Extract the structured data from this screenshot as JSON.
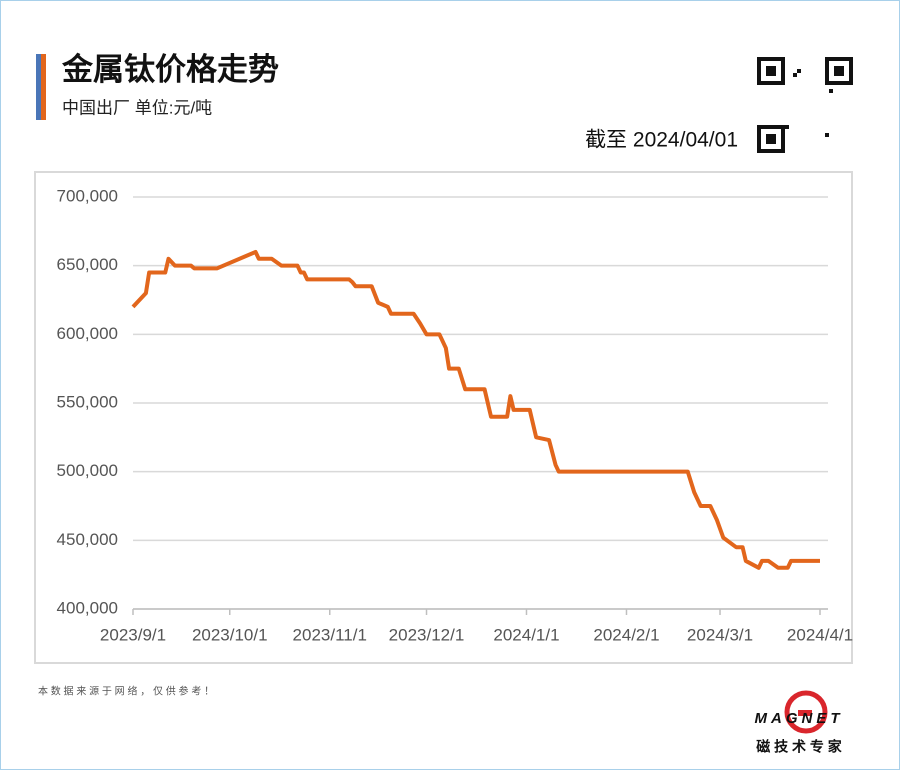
{
  "chart_data": {
    "type": "line",
    "title": "金属钛价格走势",
    "subtitle": "中国出厂 单位:元/吨",
    "annotation": "截至 2024/04/01",
    "x": [
      "2023/9/1",
      "2023/9/5",
      "2023/9/6",
      "2023/9/11",
      "2023/9/12",
      "2023/9/14",
      "2023/9/19",
      "2023/9/20",
      "2023/9/27",
      "2023/10/9",
      "2023/10/10",
      "2023/10/14",
      "2023/10/17",
      "2023/10/22",
      "2023/10/23",
      "2023/10/24",
      "2023/10/25",
      "2023/11/7",
      "2023/11/8",
      "2023/11/9",
      "2023/11/14",
      "2023/11/16",
      "2023/11/19",
      "2023/11/20",
      "2023/11/27",
      "2023/11/29",
      "2023/12/1",
      "2023/12/5",
      "2023/12/7",
      "2023/12/8",
      "2023/12/11",
      "2023/12/13",
      "2023/12/19",
      "2023/12/20",
      "2023/12/21",
      "2023/12/26",
      "2023/12/27",
      "2023/12/28",
      "2024/1/2",
      "2024/1/4",
      "2024/1/8",
      "2024/1/10",
      "2024/1/11",
      "2024/2/20",
      "2024/2/22",
      "2024/2/24",
      "2024/2/27",
      "2024/2/29",
      "2024/3/2",
      "2024/3/6",
      "2024/3/8",
      "2024/3/9",
      "2024/3/13",
      "2024/3/14",
      "2024/3/16",
      "2024/3/19",
      "2024/3/22",
      "2024/3/23",
      "2024/4/1"
    ],
    "values": [
      620000,
      630000,
      645000,
      645000,
      655000,
      650000,
      650000,
      648000,
      648000,
      660000,
      655000,
      655000,
      650000,
      650000,
      645000,
      645000,
      640000,
      640000,
      638000,
      635000,
      635000,
      623000,
      620000,
      615000,
      615000,
      608000,
      600000,
      600000,
      590000,
      575000,
      575000,
      560000,
      560000,
      550000,
      540000,
      540000,
      555000,
      545000,
      545000,
      525000,
      523000,
      505000,
      500000,
      500000,
      485000,
      475000,
      475000,
      465000,
      452000,
      445000,
      445000,
      435000,
      430000,
      435000,
      435000,
      430000,
      430000,
      435000,
      435000
    ],
    "color": "#e2661c",
    "xlim": [
      "2023/9/1",
      "2024/4/1"
    ],
    "xticks": [
      "2023/9/1",
      "2023/10/1",
      "2023/11/1",
      "2023/12/1",
      "2024/1/1",
      "2024/2/1",
      "2024/3/1",
      "2024/4/1"
    ],
    "ylim": [
      400000,
      700000
    ],
    "yticks": [
      {
        "value": 400000,
        "label": "400,000"
      },
      {
        "value": 450000,
        "label": "450,000"
      },
      {
        "value": 500000,
        "label": "500,000"
      },
      {
        "value": 550000,
        "label": "550,000"
      },
      {
        "value": 600000,
        "label": "600,000"
      },
      {
        "value": 650000,
        "label": "650,000"
      },
      {
        "value": 700000,
        "label": "700,000"
      }
    ],
    "grid": true
  },
  "footer": {
    "source_note": "本 数 据 来 源 于 网 络 ， 仅 供 参 考 ！",
    "brand": "MAGNET",
    "tagline": "磁 技 术 专 家"
  }
}
